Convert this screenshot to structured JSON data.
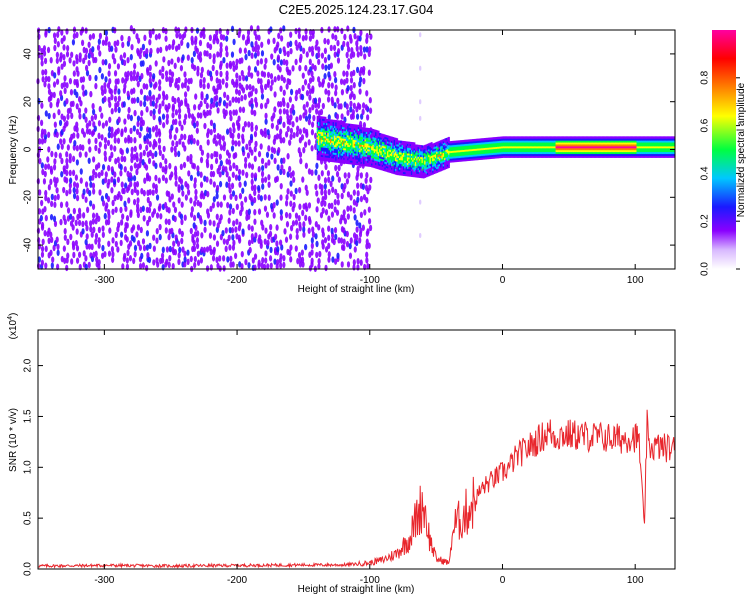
{
  "title": "C2E5.2025.124.23.17.G04",
  "colors": {
    "snr_line": "#e8262c",
    "axis": "#000000",
    "spectrogram_background": "#ffffff",
    "colormap": [
      "#ffffff",
      "#8a00ff",
      "#1a1aff",
      "#00c8ff",
      "#00ff40",
      "#ffff00",
      "#ff8000",
      "#ff0000",
      "#ff00a0"
    ]
  },
  "chart_data": [
    {
      "type": "heatmap",
      "panel": "spectrogram",
      "title": "C2E5.2025.124.23.17.G04",
      "xlabel": "Height of straight line (km)",
      "ylabel": "Frequency (Hz)",
      "xlim": [
        -350,
        130
      ],
      "ylim": [
        -50,
        50
      ],
      "x_ticks": [
        -300,
        -200,
        -100,
        0,
        100
      ],
      "x_tick_labels": [
        "-300",
        "-200",
        "-100",
        "0",
        "100"
      ],
      "y_ticks": [
        -40,
        -20,
        0,
        20,
        40
      ],
      "y_tick_labels": [
        "-40",
        "-20",
        "0",
        "20",
        "40"
      ],
      "colorbar": {
        "label": "Normalized spectral amplitude",
        "range": [
          0,
          1
        ],
        "ticks": [
          0,
          0.2,
          0.4,
          0.6,
          0.8
        ],
        "tick_labels": [
          "0.0",
          "0.2",
          "0.4",
          "0.6",
          "0.8"
        ]
      },
      "description_values": {
        "noise_region_x": [
          -350,
          -100
        ],
        "signal_onset_x": -140,
        "signal_center_frequency": [
          [
            -140,
            5
          ],
          [
            -120,
            3
          ],
          [
            -100,
            1
          ],
          [
            -80,
            -3
          ],
          [
            -60,
            -5
          ],
          [
            -40,
            -1
          ],
          [
            -20,
            0
          ],
          [
            0,
            1
          ],
          [
            20,
            1
          ],
          [
            40,
            1
          ],
          [
            60,
            1
          ],
          [
            80,
            1
          ],
          [
            100,
            1
          ],
          [
            130,
            1
          ]
        ],
        "peak_amplitude_x": [
          40,
          100
        ]
      }
    },
    {
      "type": "line",
      "panel": "snr",
      "xlabel": "Height of straight line (km)",
      "ylabel": "SNR (10 * v/v)",
      "y_scale_label": "(x10",
      "y_scale_exponent": "4",
      "y_scale_close": ")",
      "xlim": [
        -350,
        130
      ],
      "ylim": [
        0,
        23500
      ],
      "x_ticks": [
        -300,
        -200,
        -100,
        0,
        100
      ],
      "x_tick_labels": [
        "-300",
        "-200",
        "-100",
        "0",
        "100"
      ],
      "y_ticks": [
        0,
        5000,
        10000,
        15000,
        20000
      ],
      "y_tick_labels": [
        "0.0",
        "0.5",
        "1.0",
        "1.5",
        "2.0"
      ],
      "series": [
        {
          "x": [
            -350,
            -300,
            -250,
            -200,
            -150,
            -120,
            -100,
            -90,
            -80,
            -70,
            -65,
            -60,
            -58,
            -55,
            -50,
            -45,
            -40,
            -38,
            -35,
            -30,
            -25,
            -20,
            -15,
            -10,
            -5,
            0,
            5,
            10,
            15,
            20,
            25,
            30,
            35,
            40,
            45,
            50,
            60,
            70,
            80,
            90,
            95,
            100,
            103,
            105,
            107,
            108,
            109,
            110,
            115,
            120,
            130
          ],
          "y": [
            300,
            350,
            300,
            350,
            400,
            400,
            600,
            900,
            1500,
            3000,
            5000,
            6500,
            5500,
            3000,
            1000,
            800,
            600,
            3500,
            4500,
            5000,
            6000,
            7000,
            8000,
            8500,
            9000,
            9500,
            10000,
            11000,
            11500,
            12000,
            12500,
            13000,
            13500,
            13000,
            13200,
            13200,
            13100,
            13000,
            12900,
            12800,
            13000,
            13000,
            12500,
            8000,
            4000,
            10000,
            14000,
            12000,
            12000,
            12000,
            11800
          ]
        }
      ]
    }
  ]
}
